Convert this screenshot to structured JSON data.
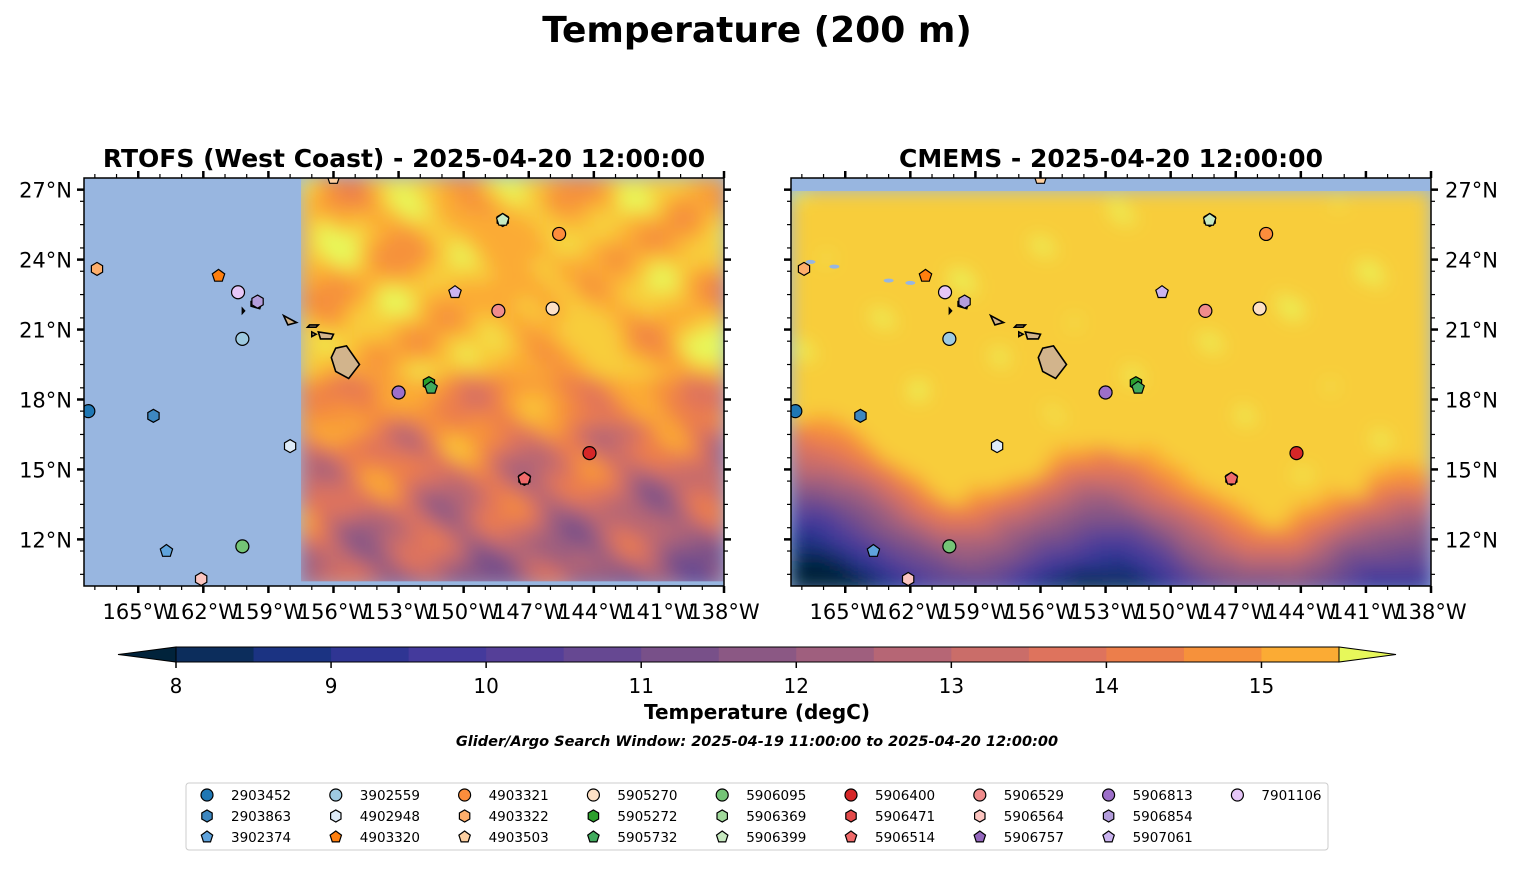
{
  "figure": {
    "title": "Temperature (200 m)"
  },
  "panels": [
    {
      "title": "RTOFS (West Coast) - 2025-04-20 12:00:00",
      "ticks_side": "left",
      "model_coverage_west_edge_lon": -157.5
    },
    {
      "title": "CMEMS - 2025-04-20 12:00:00",
      "ticks_side": "right"
    }
  ],
  "map": {
    "lon_range": [
      -167.5,
      -138
    ],
    "lat_range": [
      10,
      27.5
    ],
    "lon_ticks": [
      -165,
      -162,
      -159,
      -156,
      -153,
      -150,
      -147,
      -144,
      -141,
      -138
    ],
    "lon_tick_labels": [
      "165°W",
      "162°W",
      "159°W",
      "156°W",
      "153°W",
      "150°W",
      "147°W",
      "144°W",
      "141°W",
      "138°W"
    ],
    "lat_ticks": [
      27,
      24,
      21,
      18,
      15,
      12
    ],
    "lat_tick_labels": [
      "27°N",
      "24°N",
      "21°N",
      "18°N",
      "15°N",
      "12°N"
    ],
    "land_color": "#d2b48c",
    "missing_color": "#98b6e0",
    "islands": [
      "Hawaii",
      "Maui",
      "Kahoolawe",
      "Lanai",
      "Molokai",
      "Oahu",
      "Kauai",
      "Niihau"
    ]
  },
  "colorbar": {
    "label": "Temperature (degC)",
    "tick_labels": [
      "8",
      "9",
      "10",
      "11",
      "12",
      "13",
      "14",
      "15"
    ],
    "min": 8,
    "max": 15.5,
    "step": 0.5,
    "extend": "both",
    "colormap": "plasma-like (dark navy to yellow)"
  },
  "search_window_text": "Glider/Argo Search Window: 2025-04-19 11:00:00 to 2025-04-20 12:00:00",
  "floats": [
    {
      "id": "2903452",
      "lon": -167.3,
      "lat": 17.5,
      "marker": "circle",
      "color": "#1f77b4"
    },
    {
      "id": "2903863",
      "lon": -164.3,
      "lat": 17.3,
      "marker": "hexagon",
      "color": "#3d87c0"
    },
    {
      "id": "3902374",
      "lon": -163.7,
      "lat": 11.5,
      "marker": "pentagon",
      "color": "#5fa3dc"
    },
    {
      "id": "3902559",
      "lon": -160.2,
      "lat": 20.6,
      "marker": "circle",
      "color": "#9ecae1"
    },
    {
      "id": "4902948",
      "lon": -158.0,
      "lat": 16.0,
      "marker": "hexagon",
      "color": "#deebf7"
    },
    {
      "id": "4903320",
      "lon": -161.3,
      "lat": 23.3,
      "marker": "pentagon",
      "color": "#ff7f0e"
    },
    {
      "id": "4903321",
      "lon": -145.6,
      "lat": 25.1,
      "marker": "circle",
      "color": "#fd8d3c"
    },
    {
      "id": "4903322",
      "lon": -166.9,
      "lat": 23.6,
      "marker": "hexagon",
      "color": "#fdae6b"
    },
    {
      "id": "4903503",
      "lon": -156.0,
      "lat": 27.5,
      "marker": "pentagon",
      "color": "#fdd0a2"
    },
    {
      "id": "5905270",
      "lon": -145.9,
      "lat": 21.9,
      "marker": "circle",
      "color": "#fde0c5"
    },
    {
      "id": "5905272",
      "lon": -151.6,
      "lat": 18.7,
      "marker": "hexagon",
      "color": "#2ca02c"
    },
    {
      "id": "5905732",
      "lon": -151.5,
      "lat": 18.5,
      "marker": "pentagon",
      "color": "#41ab5d"
    },
    {
      "id": "5906095",
      "lon": -160.2,
      "lat": 11.7,
      "marker": "circle",
      "color": "#74c476"
    },
    {
      "id": "5906369",
      "lon": -148.2,
      "lat": 25.7,
      "marker": "hexagon",
      "color": "#a1d99b"
    },
    {
      "id": "5906399",
      "lon": -148.2,
      "lat": 25.7,
      "marker": "pentagon",
      "color": "#c7e9c0"
    },
    {
      "id": "5906400",
      "lon": -144.2,
      "lat": 15.7,
      "marker": "circle",
      "color": "#d62728"
    },
    {
      "id": "5906471",
      "lon": -147.2,
      "lat": 14.6,
      "marker": "hexagon",
      "color": "#e34a4a"
    },
    {
      "id": "5906514",
      "lon": -147.2,
      "lat": 14.6,
      "marker": "pentagon",
      "color": "#f06a6a"
    },
    {
      "id": "5906529",
      "lon": -148.4,
      "lat": 21.8,
      "marker": "circle",
      "color": "#f08c8c"
    },
    {
      "id": "5906564",
      "lon": -162.1,
      "lat": 10.3,
      "marker": "hexagon",
      "color": "#fcc5c0"
    },
    {
      "id": "5906757",
      "lon": -153.0,
      "lat": 18.3,
      "marker": "pentagon",
      "color": "#9467bd"
    },
    {
      "id": "5906813",
      "lon": -153.0,
      "lat": 18.3,
      "marker": "circle",
      "color": "#9d6fc9"
    },
    {
      "id": "5906854",
      "lon": -159.5,
      "lat": 22.2,
      "marker": "hexagon",
      "color": "#b39ddb"
    },
    {
      "id": "5907061",
      "lon": -150.4,
      "lat": 22.6,
      "marker": "pentagon",
      "color": "#cbb4f0"
    },
    {
      "id": "7901106",
      "lon": -160.4,
      "lat": 22.6,
      "marker": "circle",
      "color": "#e6c6f7"
    }
  ]
}
